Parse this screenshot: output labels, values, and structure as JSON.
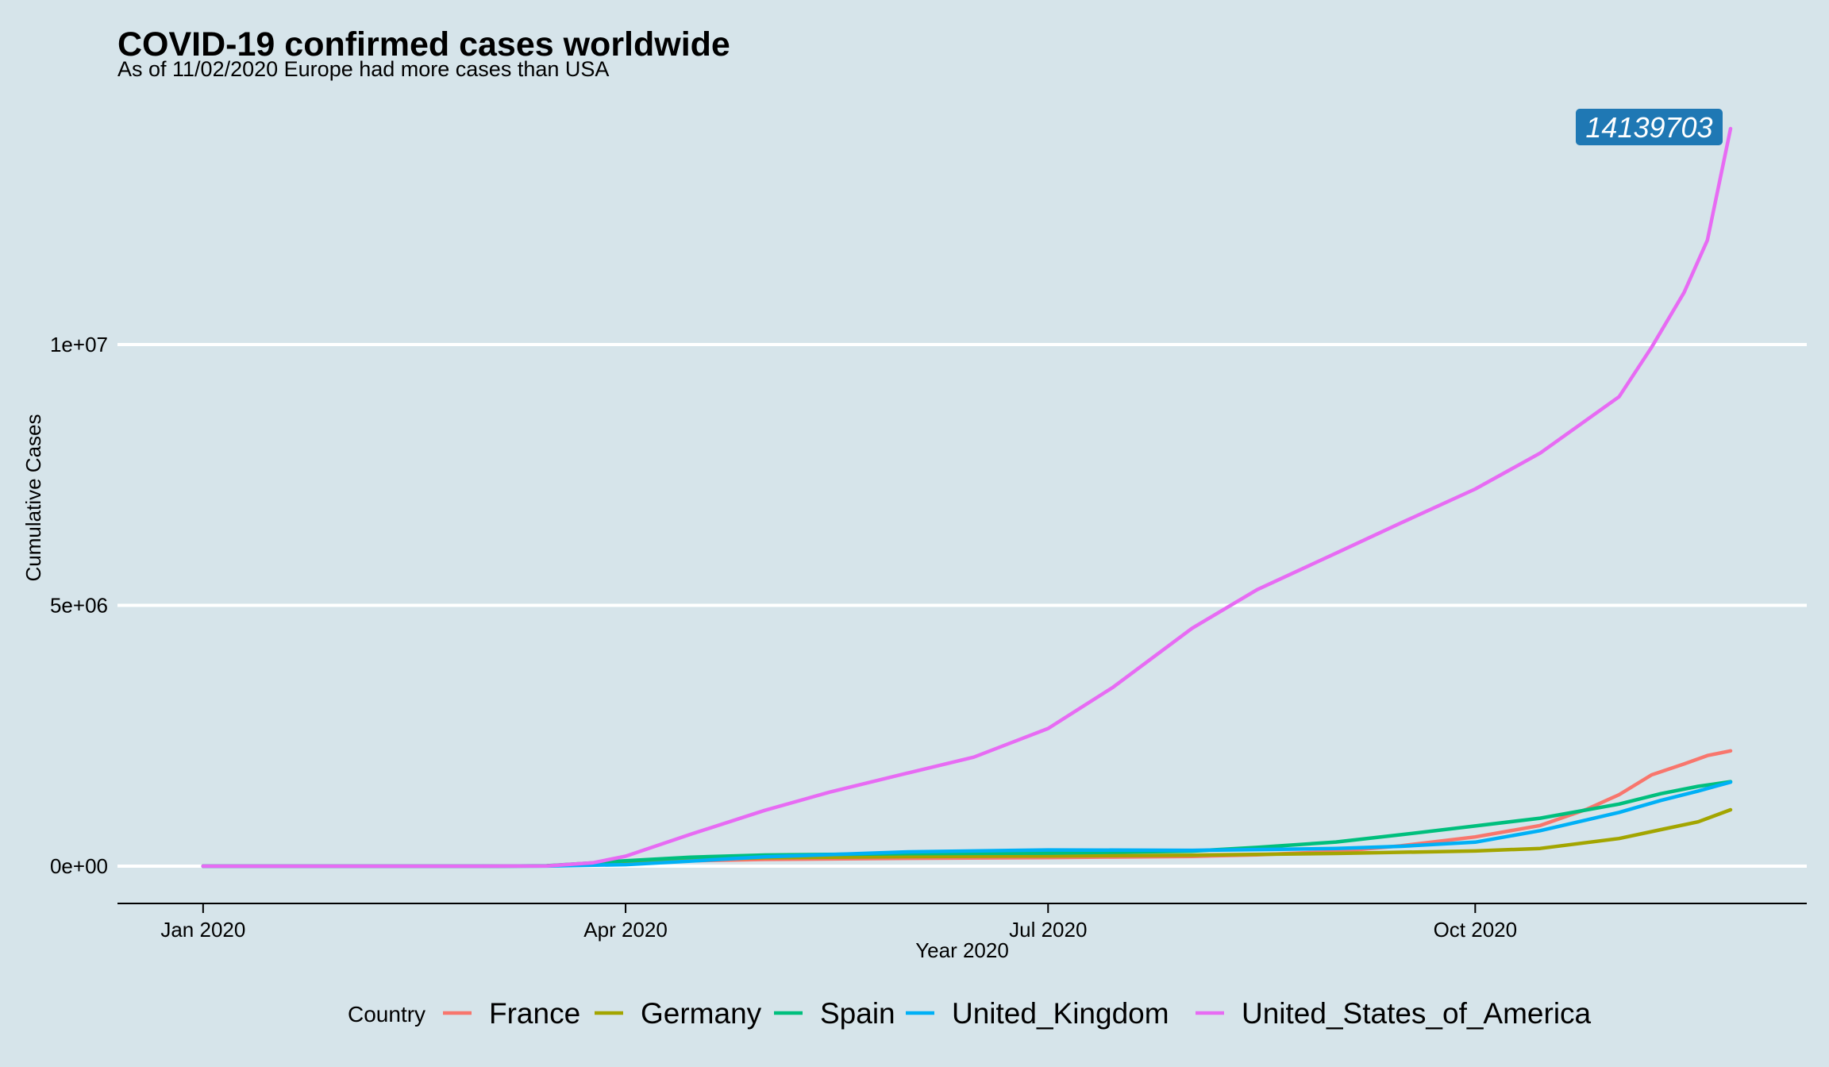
{
  "chart_data": {
    "type": "line",
    "title": "COVID-19 confirmed cases worldwide",
    "subtitle": "As of 11/02/2020 Europe had more cases than USA",
    "xlabel": "Year 2020",
    "ylabel": "Cumulative Cases",
    "x_range": [
      "2019-12-31",
      "2020-11-25"
    ],
    "ylim": [
      -700000,
      14500000
    ],
    "x_ticks": [
      {
        "date": "2020-01-01",
        "label": "Jan 2020"
      },
      {
        "date": "2020-04-01",
        "label": "Apr 2020"
      },
      {
        "date": "2020-07-01",
        "label": "Jul 2020"
      },
      {
        "date": "2020-10-01",
        "label": "Oct 2020"
      }
    ],
    "y_ticks": [
      {
        "value": 0,
        "label": "0e+00"
      },
      {
        "value": 5000000,
        "label": "5e+06"
      },
      {
        "value": 10000000,
        "label": "1e+07"
      }
    ],
    "grid": "horizontal major lines only",
    "legend": {
      "title": "Country",
      "placement": "bottom"
    },
    "annotation": {
      "text": "14139703",
      "date": "2020-11-25",
      "value": 14139703,
      "color": "#1f78b4"
    },
    "series": [
      {
        "name": "France",
        "color": "#f8766d",
        "points": [
          [
            "2020-01-01",
            0
          ],
          [
            "2020-03-01",
            100
          ],
          [
            "2020-03-15",
            5400
          ],
          [
            "2020-04-01",
            57000
          ],
          [
            "2020-04-15",
            103000
          ],
          [
            "2020-05-01",
            130000
          ],
          [
            "2020-06-01",
            151000
          ],
          [
            "2020-07-01",
            165000
          ],
          [
            "2020-08-01",
            187000
          ],
          [
            "2020-08-15",
            216000
          ],
          [
            "2020-09-01",
            280000
          ],
          [
            "2020-09-15",
            390000
          ],
          [
            "2020-10-01",
            560000
          ],
          [
            "2020-10-15",
            780000
          ],
          [
            "2020-10-25",
            1090000
          ],
          [
            "2020-11-01",
            1370000
          ],
          [
            "2020-11-08",
            1750000
          ],
          [
            "2020-11-15",
            1960000
          ],
          [
            "2020-11-20",
            2120000
          ],
          [
            "2020-11-25",
            2210000
          ]
        ]
      },
      {
        "name": "Germany",
        "color": "#a3a500",
        "points": [
          [
            "2020-01-01",
            0
          ],
          [
            "2020-03-01",
            130
          ],
          [
            "2020-03-15",
            4800
          ],
          [
            "2020-04-01",
            72000
          ],
          [
            "2020-04-15",
            130000
          ],
          [
            "2020-05-01",
            161000
          ],
          [
            "2020-06-01",
            182000
          ],
          [
            "2020-07-01",
            195000
          ],
          [
            "2020-08-01",
            210000
          ],
          [
            "2020-09-01",
            243000
          ],
          [
            "2020-10-01",
            290000
          ],
          [
            "2020-10-15",
            340000
          ],
          [
            "2020-11-01",
            530000
          ],
          [
            "2020-11-10",
            700000
          ],
          [
            "2020-11-18",
            850000
          ],
          [
            "2020-11-25",
            1080000
          ]
        ]
      },
      {
        "name": "Spain",
        "color": "#00bf7d",
        "points": [
          [
            "2020-01-01",
            0
          ],
          [
            "2020-03-01",
            80
          ],
          [
            "2020-03-15",
            7800
          ],
          [
            "2020-04-01",
            102000
          ],
          [
            "2020-04-15",
            172000
          ],
          [
            "2020-05-01",
            213000
          ],
          [
            "2020-06-01",
            239000
          ],
          [
            "2020-07-01",
            249000
          ],
          [
            "2020-08-01",
            288000
          ],
          [
            "2020-08-15",
            359000
          ],
          [
            "2020-09-01",
            463000
          ],
          [
            "2020-09-15",
            603000
          ],
          [
            "2020-10-01",
            770000
          ],
          [
            "2020-10-15",
            920000
          ],
          [
            "2020-11-01",
            1190000
          ],
          [
            "2020-11-10",
            1390000
          ],
          [
            "2020-11-18",
            1530000
          ],
          [
            "2020-11-25",
            1620000
          ]
        ]
      },
      {
        "name": "United_Kingdom",
        "color": "#00b0f6",
        "points": [
          [
            "2020-01-01",
            0
          ],
          [
            "2020-03-01",
            36
          ],
          [
            "2020-03-15",
            1140
          ],
          [
            "2020-04-01",
            29000
          ],
          [
            "2020-04-15",
            98000
          ],
          [
            "2020-05-01",
            178000
          ],
          [
            "2020-06-01",
            274000
          ],
          [
            "2020-07-01",
            311000
          ],
          [
            "2020-08-01",
            303000
          ],
          [
            "2020-09-01",
            338000
          ],
          [
            "2020-09-15",
            380000
          ],
          [
            "2020-10-01",
            460000
          ],
          [
            "2020-10-15",
            680000
          ],
          [
            "2020-11-01",
            1030000
          ],
          [
            "2020-11-10",
            1260000
          ],
          [
            "2020-11-18",
            1440000
          ],
          [
            "2020-11-25",
            1610000
          ]
        ]
      },
      {
        "name": "United_States_of_America",
        "color": "#e76bf3",
        "points": [
          [
            "2020-01-01",
            0
          ],
          [
            "2020-03-01",
            70
          ],
          [
            "2020-03-15",
            2900
          ],
          [
            "2020-03-25",
            65000
          ],
          [
            "2020-04-01",
            190000
          ],
          [
            "2020-04-15",
            610000
          ],
          [
            "2020-05-01",
            1070000
          ],
          [
            "2020-05-15",
            1420000
          ],
          [
            "2020-06-01",
            1790000
          ],
          [
            "2020-06-15",
            2090000
          ],
          [
            "2020-07-01",
            2640000
          ],
          [
            "2020-07-15",
            3430000
          ],
          [
            "2020-08-01",
            4560000
          ],
          [
            "2020-08-15",
            5300000
          ],
          [
            "2020-09-01",
            6000000
          ],
          [
            "2020-09-15",
            6580000
          ],
          [
            "2020-10-01",
            7230000
          ],
          [
            "2020-10-15",
            7920000
          ],
          [
            "2020-11-01",
            9000000
          ],
          [
            "2020-11-08",
            9950000
          ],
          [
            "2020-11-15",
            11000000
          ],
          [
            "2020-11-20",
            12000000
          ],
          [
            "2020-11-25",
            14139703
          ]
        ]
      }
    ]
  }
}
